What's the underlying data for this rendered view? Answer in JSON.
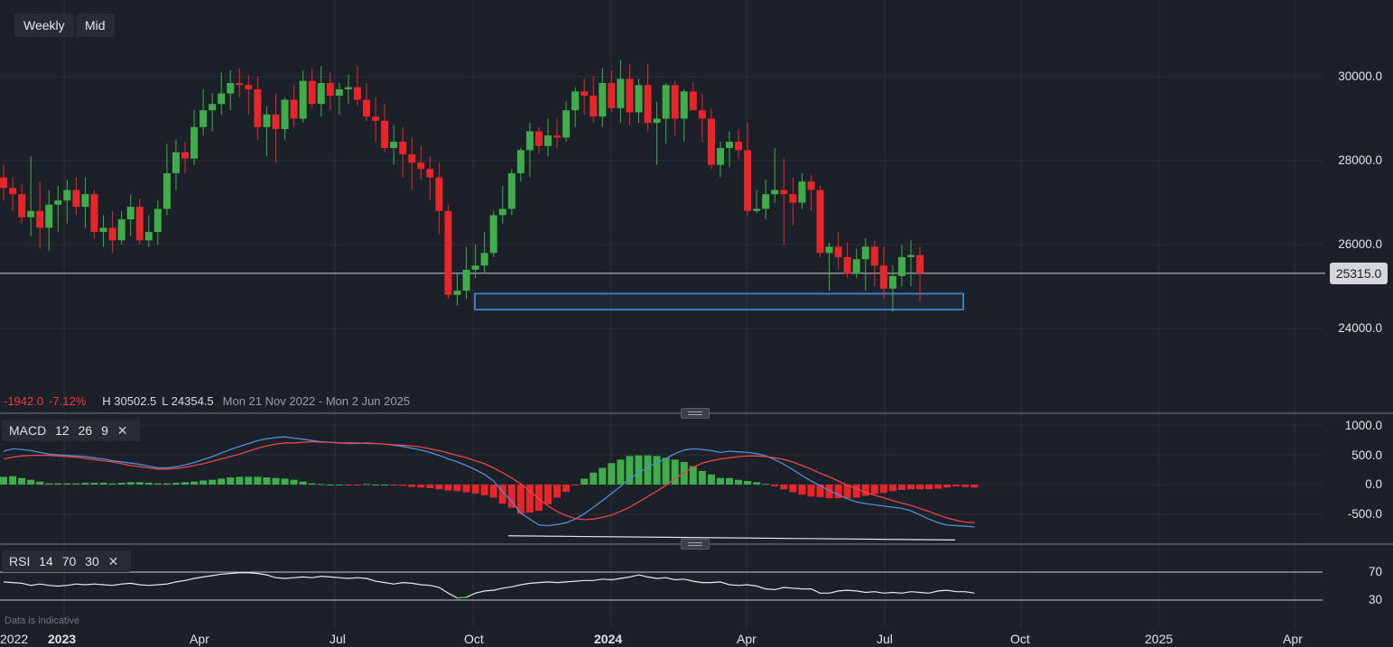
{
  "toolbar": {
    "timeframe": "Weekly",
    "price_type": "Mid"
  },
  "current_price": "25315.0",
  "info": {
    "change": "-1942.0",
    "change_pct": "-7.12%",
    "high": "H 30502.5",
    "low": "L 24354.5",
    "range": "Mon 21 Nov 2022 - Mon 2 Jun 2025"
  },
  "macd": {
    "name": "MACD",
    "fast": "12",
    "slow": "26",
    "signal": "9"
  },
  "rsi": {
    "name": "RSI",
    "period": "14",
    "upper": "70",
    "lower": "30"
  },
  "footnote": "Data is indicative",
  "colors": {
    "background": "#1c2028",
    "up": "#3fae4a",
    "down": "#e8252a",
    "macd_line": "#4a90d9",
    "signal_line": "#e8454a",
    "support_zone": "#3a7ec2"
  },
  "chart_data": [
    {
      "type": "candlestick",
      "title": "",
      "y_ticks": [
        "30000.0",
        "28000.0",
        "26000.0",
        "24000.0"
      ],
      "x_ticks": [
        "2022",
        "2023",
        "Apr",
        "Jul",
        "Oct",
        "2024",
        "Apr",
        "Jul",
        "Oct",
        "2025",
        "Apr"
      ],
      "ylim": [
        23000,
        31500
      ],
      "current_price": 25315.0,
      "support_zone": [
        24450,
        24830
      ],
      "ohlc": [
        [
          27600,
          27900,
          27050,
          27350
        ],
        [
          27350,
          27600,
          26800,
          27200
        ],
        [
          27200,
          27450,
          26500,
          26650
        ],
        [
          26650,
          28100,
          26200,
          26800
        ],
        [
          26800,
          27500,
          25900,
          26400
        ],
        [
          26400,
          27300,
          25850,
          26950
        ],
        [
          26950,
          27400,
          26300,
          27050
        ],
        [
          27050,
          27550,
          26500,
          27300
        ],
        [
          27300,
          27600,
          26700,
          26900
        ],
        [
          26900,
          27600,
          26400,
          27200
        ],
        [
          27200,
          27300,
          26150,
          26300
        ],
        [
          26300,
          26700,
          25950,
          26400
        ],
        [
          26400,
          26800,
          25800,
          26100
        ],
        [
          26100,
          26800,
          26000,
          26600
        ],
        [
          26600,
          27200,
          26200,
          26900
        ],
        [
          26900,
          27100,
          26000,
          26100
        ],
        [
          26100,
          26700,
          25950,
          26300
        ],
        [
          26300,
          27050,
          26000,
          26850
        ],
        [
          26850,
          28400,
          26700,
          27700
        ],
        [
          27700,
          28500,
          27300,
          28200
        ],
        [
          28200,
          28450,
          27700,
          28050
        ],
        [
          28050,
          29200,
          27900,
          28800
        ],
        [
          28800,
          29700,
          28600,
          29200
        ],
        [
          29200,
          29600,
          28700,
          29350
        ],
        [
          29350,
          30100,
          29100,
          29600
        ],
        [
          29600,
          30150,
          29200,
          29850
        ],
        [
          29850,
          30200,
          29500,
          29800
        ],
        [
          29800,
          30050,
          29100,
          29700
        ],
        [
          29700,
          30000,
          28500,
          28800
        ],
        [
          28800,
          29300,
          28100,
          29100
        ],
        [
          29100,
          29600,
          27950,
          28750
        ],
        [
          28750,
          29500,
          28500,
          29450
        ],
        [
          29450,
          29800,
          28800,
          29000
        ],
        [
          29000,
          30150,
          28900,
          29900
        ],
        [
          29900,
          30200,
          29250,
          29350
        ],
        [
          29350,
          30250,
          29050,
          29850
        ],
        [
          29850,
          30100,
          29200,
          29550
        ],
        [
          29550,
          29850,
          29100,
          29700
        ],
        [
          29700,
          30050,
          29350,
          29750
        ],
        [
          29750,
          30250,
          29300,
          29450
        ],
        [
          29450,
          29850,
          28950,
          29050
        ],
        [
          29050,
          29500,
          28450,
          28950
        ],
        [
          28950,
          29350,
          28200,
          28300
        ],
        [
          28300,
          28850,
          27900,
          28450
        ],
        [
          28450,
          28800,
          27600,
          28150
        ],
        [
          28150,
          28550,
          27300,
          27950
        ],
        [
          27950,
          28350,
          27550,
          27800
        ],
        [
          27800,
          28100,
          27050,
          27600
        ],
        [
          27600,
          27950,
          26250,
          26800
        ],
        [
          26800,
          26950,
          24700,
          24800
        ],
        [
          24800,
          25300,
          24550,
          24900
        ],
        [
          24900,
          25950,
          24700,
          25400
        ],
        [
          25400,
          26000,
          25200,
          25500
        ],
        [
          25500,
          26300,
          25300,
          25800
        ],
        [
          25800,
          26800,
          25700,
          26700
        ],
        [
          26700,
          27400,
          26500,
          26850
        ],
        [
          26850,
          27800,
          26700,
          27700
        ],
        [
          27700,
          28300,
          27500,
          28250
        ],
        [
          28250,
          28900,
          27600,
          28700
        ],
        [
          28700,
          28800,
          28150,
          28350
        ],
        [
          28350,
          29000,
          28100,
          28600
        ],
        [
          28600,
          29000,
          28300,
          28550
        ],
        [
          28550,
          29400,
          28450,
          29200
        ],
        [
          29200,
          29750,
          28800,
          29650
        ],
        [
          29650,
          29950,
          29100,
          29550
        ],
        [
          29550,
          30000,
          28900,
          29050
        ],
        [
          29050,
          30200,
          28800,
          29850
        ],
        [
          29850,
          30150,
          29150,
          29250
        ],
        [
          29250,
          30400,
          28900,
          29950
        ],
        [
          29950,
          30300,
          28850,
          29150
        ],
        [
          29150,
          29950,
          28900,
          29800
        ],
        [
          29800,
          30300,
          28700,
          28900
        ],
        [
          28900,
          29400,
          27900,
          29000
        ],
        [
          29000,
          29850,
          28400,
          29800
        ],
        [
          29800,
          29900,
          28600,
          29000
        ],
        [
          29000,
          29700,
          28450,
          29650
        ],
        [
          29650,
          29850,
          29200,
          29200
        ],
        [
          29200,
          29600,
          28450,
          29000
        ],
        [
          29000,
          29250,
          27800,
          27900
        ],
        [
          27900,
          28450,
          27600,
          28300
        ],
        [
          28300,
          28700,
          27850,
          28450
        ],
        [
          28450,
          28750,
          28050,
          28250
        ],
        [
          28250,
          28900,
          26700,
          26800
        ],
        [
          26800,
          27300,
          26750,
          26850
        ],
        [
          26850,
          27550,
          26600,
          27200
        ],
        [
          27200,
          28300,
          27000,
          27300
        ],
        [
          27300,
          28050,
          26000,
          27200
        ],
        [
          27200,
          27600,
          26450,
          27000
        ],
        [
          27000,
          27700,
          26850,
          27500
        ],
        [
          27500,
          27650,
          26800,
          27300
        ],
        [
          27300,
          27400,
          25700,
          25800
        ],
        [
          25800,
          26050,
          24900,
          25950
        ],
        [
          25950,
          26300,
          25400,
          25700
        ],
        [
          25700,
          26050,
          25200,
          25300
        ],
        [
          25300,
          25900,
          25200,
          25650
        ],
        [
          25650,
          26150,
          24900,
          25950
        ],
        [
          25950,
          26100,
          25000,
          25500
        ],
        [
          25500,
          25950,
          24700,
          24950
        ],
        [
          24950,
          25500,
          24400,
          25250
        ],
        [
          25250,
          26000,
          25000,
          25700
        ],
        [
          25700,
          26100,
          25000,
          25750
        ],
        [
          25750,
          25950,
          24650,
          25315
        ]
      ]
    },
    {
      "type": "macd",
      "y_ticks": [
        "1000.0",
        "500.0",
        "0.0",
        "-500.0"
      ],
      "ylim": [
        -1000,
        1100
      ],
      "macd_line": [
        560,
        600,
        590,
        570,
        540,
        510,
        500,
        490,
        480,
        470,
        450,
        430,
        400,
        380,
        360,
        340,
        310,
        280,
        280,
        300,
        330,
        370,
        420,
        470,
        530,
        590,
        640,
        690,
        740,
        770,
        790,
        800,
        780,
        760,
        740,
        720,
        710,
        700,
        690,
        690,
        700,
        690,
        680,
        660,
        640,
        610,
        580,
        540,
        490,
        430,
        380,
        320,
        250,
        170,
        60,
        -120,
        -280,
        -480,
        -580,
        -680,
        -690,
        -670,
        -640,
        -580,
        -490,
        -380,
        -270,
        -150,
        -30,
        100,
        200,
        290,
        370,
        440,
        520,
        580,
        600,
        590,
        570,
        540,
        560,
        550,
        540,
        520,
        480,
        420,
        340,
        250,
        150,
        60,
        -20,
        -100,
        -170,
        -240,
        -290,
        -320,
        -340,
        -360,
        -380,
        -400,
        -440,
        -510,
        -580,
        -640,
        -680,
        -690,
        -700,
        -710
      ],
      "signal_line": [
        430,
        460,
        480,
        490,
        490,
        490,
        480,
        470,
        460,
        440,
        420,
        400,
        380,
        350,
        320,
        300,
        280,
        260,
        260,
        270,
        290,
        320,
        350,
        390,
        430,
        470,
        510,
        560,
        610,
        650,
        680,
        700,
        700,
        710,
        720,
        710,
        710,
        700,
        700,
        700,
        690,
        690,
        680,
        670,
        660,
        650,
        630,
        600,
        570,
        530,
        490,
        450,
        400,
        350,
        280,
        200,
        110,
        10,
        -110,
        -240,
        -360,
        -450,
        -520,
        -570,
        -590,
        -580,
        -550,
        -510,
        -450,
        -380,
        -290,
        -200,
        -110,
        -10,
        100,
        200,
        290,
        360,
        400,
        430,
        450,
        470,
        480,
        480,
        470,
        450,
        420,
        380,
        320,
        260,
        190,
        130,
        60,
        -10,
        -70,
        -130,
        -180,
        -220,
        -270,
        -310,
        -350,
        -400,
        -450,
        -510,
        -560,
        -600,
        -630,
        -640
      ],
      "histogram": [
        130,
        140,
        110,
        80,
        50,
        20,
        20,
        20,
        20,
        30,
        30,
        30,
        20,
        30,
        40,
        40,
        30,
        20,
        20,
        30,
        40,
        50,
        70,
        80,
        100,
        120,
        130,
        130,
        130,
        120,
        110,
        100,
        80,
        50,
        20,
        10,
        0,
        0,
        -10,
        -10,
        10,
        0,
        0,
        -10,
        -20,
        -40,
        -50,
        -60,
        -80,
        -100,
        -110,
        -130,
        -150,
        -180,
        -220,
        -320,
        -390,
        -490,
        -470,
        -440,
        -330,
        -220,
        -120,
        -10,
        100,
        200,
        280,
        360,
        420,
        480,
        490,
        490,
        480,
        450,
        420,
        380,
        310,
        230,
        170,
        110,
        110,
        80,
        60,
        40,
        10,
        -30,
        -80,
        -130,
        -170,
        -200,
        -210,
        -230,
        -230,
        -230,
        -220,
        -190,
        -160,
        -140,
        -110,
        -90,
        -80,
        -80,
        -80,
        -70,
        -50,
        -30,
        -40,
        -50
      ],
      "trendline": [
        -860,
        -930
      ]
    },
    {
      "type": "rsi",
      "y_ticks": [
        "70",
        "30"
      ],
      "ylim": [
        0,
        100
      ],
      "values": [
        56,
        55,
        54,
        51,
        53,
        51,
        50,
        51,
        53,
        52,
        53,
        52,
        51,
        53,
        54,
        52,
        51,
        52,
        53,
        56,
        58,
        61,
        63,
        65,
        67,
        68,
        69,
        69,
        68,
        66,
        62,
        61,
        62,
        63,
        62,
        64,
        63,
        62,
        61,
        62,
        61,
        57,
        55,
        53,
        55,
        54,
        52,
        51,
        48,
        40,
        33,
        34,
        40,
        43,
        44,
        47,
        49,
        52,
        54,
        55,
        56,
        55,
        56,
        57,
        58,
        58,
        60,
        59,
        61,
        63,
        66,
        63,
        61,
        62,
        59,
        60,
        57,
        55,
        55,
        56,
        52,
        51,
        52,
        50,
        46,
        45,
        48,
        47,
        46,
        46,
        40,
        40,
        43,
        44,
        43,
        41,
        42,
        40,
        41,
        40,
        42,
        41,
        40,
        43,
        44,
        42,
        42,
        40
      ]
    }
  ]
}
